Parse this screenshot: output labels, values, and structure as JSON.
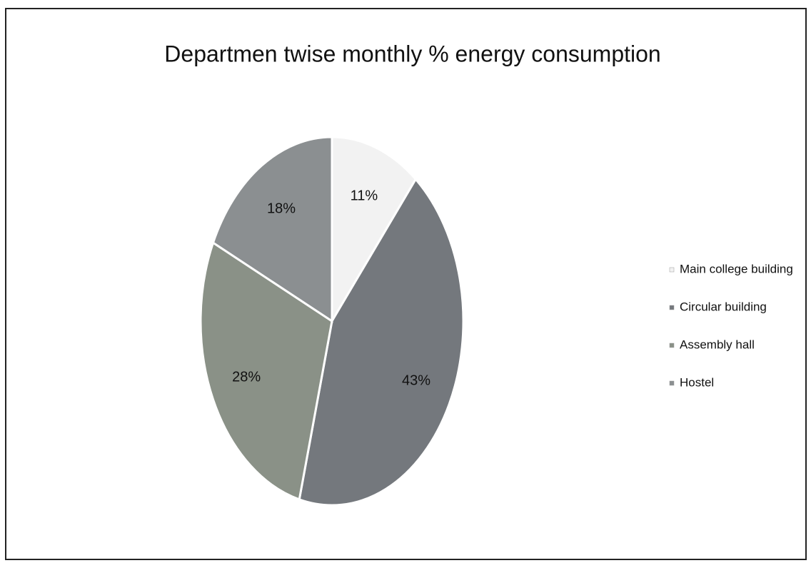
{
  "chart_data": {
    "type": "pie",
    "title": "Departmen twise monthly % energy consumption",
    "categories": [
      "Main college building",
      "Circular building",
      "Assembly hall",
      "Hostel"
    ],
    "values": [
      11,
      43,
      28,
      18
    ],
    "value_labels": [
      "11%",
      "43%",
      "28%",
      "18%"
    ],
    "colors": [
      "#f2f2f2",
      "#74787d",
      "#8a9187",
      "#8b8f91"
    ],
    "legend": "right"
  }
}
